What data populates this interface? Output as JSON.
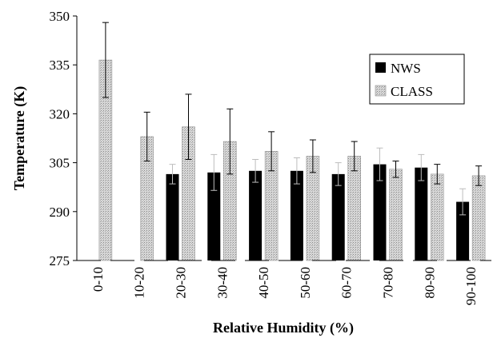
{
  "chart_data": {
    "type": "bar",
    "title": "",
    "xlabel": "Relative Humidity (%)",
    "ylabel": "Temperature (K)",
    "ylim": [
      275,
      350
    ],
    "yticks": [
      "275",
      "290",
      "305",
      "320",
      "335",
      "350"
    ],
    "categories": [
      "0-10",
      "10-20",
      "20-30",
      "30-40",
      "40-50",
      "50-60",
      "60-70",
      "70-80",
      "80-90",
      "90-100"
    ],
    "series": [
      {
        "name": "NWS",
        "color": "#000000",
        "values": [
          null,
          null,
          301.5,
          302,
          302.5,
          302.5,
          301.5,
          304.5,
          303.5,
          293
        ],
        "errors": [
          null,
          null,
          3,
          5.5,
          3.5,
          4,
          3.5,
          5,
          4,
          4
        ]
      },
      {
        "name": "CLASS",
        "color": "#cfcfcf",
        "values": [
          336.5,
          313,
          316,
          311.5,
          308.5,
          307,
          307,
          303,
          301.5,
          301
        ],
        "errors": [
          11.5,
          7.5,
          10,
          10,
          6,
          5,
          4.5,
          2.5,
          3,
          3
        ]
      }
    ],
    "legend_position": "top-right",
    "grid": false
  }
}
